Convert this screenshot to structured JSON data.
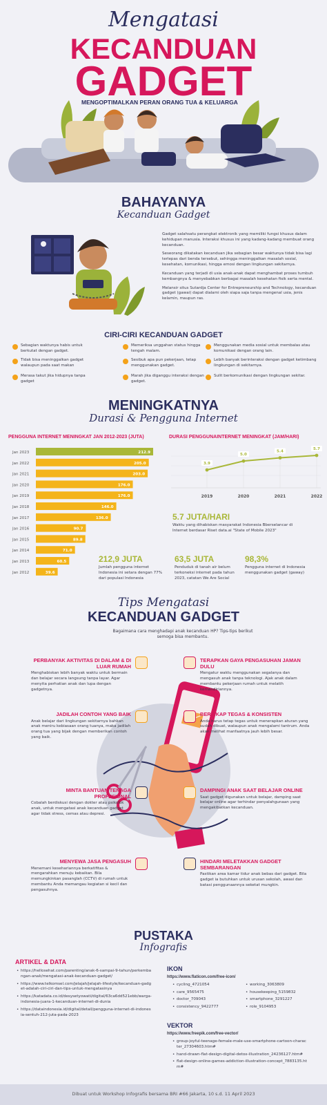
{
  "header": {
    "script_title": "Mengatasi",
    "title_line1": "KECANDUAN",
    "title_line2": "GADGET",
    "subtitle": "MENGOPTIMALKAN PERAN ORANG TUA & KELUARGA"
  },
  "danger": {
    "title": "BAHAYANYA",
    "subtitle": "Kecanduan Gadget",
    "paragraphs": [
      "Gadget salahsatu perangkat elektronik yang memiliki fungsi khusus dalam kehidupan manusia. Interaksi khusus ini yang kadang-kadang membuat orang kecanduan.",
      "Seseorang dikatakan kecanduan jika sebagian besar waktunya tidak bisa lagi terlepas dari benda tersebut, sehingga meninggalkan masalah sosial, kesehatan, komunikasi, hingga emosi dengan lingkungan sekitarnya.",
      "Kecanduan yang terjadi di usia anak-anak dapat menghambat proses tumbuh kembangnya & menyebabkan berbagai masalah kesehatan fisik serta mental.",
      "Melansir situs Sutardja Center for Entrepreneurship and Technology, kecanduan gadget (gawai) dapat dialami oleh siapa saja tanpa mengenal usia, jenis kelamin, maupun ras."
    ]
  },
  "signs": {
    "title": "CIRI-CIRI KECANDUAN GADGET",
    "items": [
      "Sebagian waktunya habis untuk berkutat dengan gadget.",
      "Tidak bisa meninggalkan gadget walaupun pada saat makan",
      "Merasa takut jika hidupnya tanpa gadget",
      "Memeriksa unggahan status hingga tengah malam.",
      "Sesibuk apa pun pekerjaan, tetap menggunakan gadget.",
      "Marah jika diganggu interaksi dengan gadget.",
      "Menggunakan media sosial untuk membalas atau komunikasi dengan orang lain.",
      "Lebih banyak berinteraksi dengan gadget ketimbang lingkungan di sekitarnya.",
      "Sulit berkomunikasi dengan lingkungan sekitar."
    ]
  },
  "growth": {
    "title": "MENINGKATNYA",
    "subtitle": "Durasi & Pengguna Internet"
  },
  "chart_data": [
    {
      "type": "bar",
      "orientation": "horizontal",
      "title": "PENGGUNA INTERNET MENINGKAT  JAN 2012-2023 (JUTA)",
      "categories": [
        "Jan 2023",
        "Jan 2022",
        "Jan 2021",
        "Jan 2020",
        "Jan 2019",
        "Jan 2018",
        "Jan 2017",
        "Jan 2016",
        "Jan 2015",
        "Jan 2014",
        "Jan 2013",
        "Jan 2012"
      ],
      "values": [
        212.9,
        205.0,
        203.0,
        176.0,
        176.0,
        146.0,
        136.0,
        90.7,
        89.8,
        71.0,
        60.5,
        39.6
      ],
      "value_labels": [
        "212.9",
        "205.0",
        "203.0",
        "176.0",
        "176.0",
        "146.0",
        "136.0",
        "90.7",
        "89.8",
        "71.0",
        "60.5",
        "39.6"
      ],
      "colors": [
        "#a9b738",
        "#f4b41a",
        "#f4b41a",
        "#f4b41a",
        "#f4b41a",
        "#f4b41a",
        "#f4b41a",
        "#f4b41a",
        "#f4b41a",
        "#f4b41a",
        "#f4b41a",
        "#f4b41a"
      ]
    },
    {
      "type": "line",
      "title": "DURASI PENGGUNAINTERNET MENINGKAT (JAM/HARI)",
      "categories": [
        "2019",
        "2020",
        "2021",
        "2022"
      ],
      "values": [
        3.9,
        5.0,
        5.4,
        5.7
      ],
      "value_labels": [
        "3.9",
        "5.0",
        "5.4",
        "5.7"
      ],
      "color": "#a9b738"
    }
  ],
  "stats": {
    "highlight": {
      "value": "5.7 JUTA/HARI",
      "text": "Waktu yang dihabiskan masyarakat Indonesia Bberselancar di Internet berdasar Riset data.ai \"State of Mobile 2023\""
    },
    "items": [
      {
        "value": "212,9 JUTA",
        "text": "Jumlah pengguna internet Indonesia ini setara dengan 77% dari populasi Indonesia"
      },
      {
        "value": "63,5 JUTA",
        "text": "Penduduk di tanah air belum terkoneksi internet pada tahun 2023, catatan We Are Social"
      },
      {
        "value": "98,3%",
        "text": "Pengguna internet di Indonesia menggunakan gadget (gaway)"
      }
    ]
  },
  "tips": {
    "script_title": "Tips Mengatasi",
    "title": "KECANDUAN GADGET",
    "intro": "Bagaimana cara menghadapi anak kecanduan HP? Tips-tips berikut semoga bisa membantu.",
    "items": [
      {
        "title": "PERBANYAK AKTIVITAS DI DALAM & DI LUAR RUMAH",
        "text": "Menghabiskan lebih banyak waktu untuk bermain dan belajar secara langsung tanpa layar. Agar menyita perhatian anak dan lupa dengan gadgetnya."
      },
      {
        "title": "TERAPKAN GAYA PENGASUHAN JAMAN DULU",
        "text": "Mengatur waktu menggunakan segalanya dan mengasuh anak tanpa teknologi. Ajak anak dalam membantu pekerjaan rumah untuk melatih kemandiriannya."
      },
      {
        "title": "JADILAH CONTOH YANG BAIK",
        "text": "Anak belajar dari lingkungan sekitarnya bahkan anak meniru kebiasaan orang tuanya, maka jadilah orang tua yang bijak dengan memberikan contoh yang baik."
      },
      {
        "title": "BERSIKAP TEGAS & KONSISTEN",
        "text": "Anda harus tetap tegas untuk menerapkan aturan yang sudah dibuat, walaupun anak mengalami tantrum. Anda akan melihat manfaatnya jauh lebih besar."
      },
      {
        "title": "MINTA BANTUAN TENAGA PROFESIONAL",
        "text": "Cobalah berdiskusi dengan dokter atau psikolok anak, untuk mengatasi anak kecanduan gadget agar tidak stress, cemas atau depresi."
      },
      {
        "title": "DAMPINGI ANAK SAAT BELAJAR ONLINE",
        "text": "Saat gadget digunakan untuk belajar, damping saat belajar online agar terhindar penyalahgunaan yang mengakibatkan kecanduan."
      },
      {
        "title": "MENYEWA JASA PENGASUH",
        "text": "Menemani kesehariannya berkatifitas & mengarahkan menuju kebaikan. Bila memungkinkan pasanglah (CCTV) di rumah untuk membantu Anda memangau kegiatan si kecil dan pengasuhnya."
      },
      {
        "title": "HINDARI MELETAKKAN GADGET SEMBARANGAN",
        "text": "Pastikan area kamar tidur anak bebas dari gadget. Bila gadget ia butuhkan untuk urusan sekolah, awasi dan batasi penggunaannya seketat mungkin."
      }
    ]
  },
  "references": {
    "title": "PUSTAKA",
    "subtitle": "Infografis",
    "articles": {
      "title": "ARTIKEL & DATA",
      "links": [
        "https://hellosehat.com/parenting/anak-6-sampai-9-tahun/perkembangan-anak/mengatasi-anak-kecanduan-gadget/",
        "https://www.telkomsel.com/jelajah/jelajah-lifestyle/kecanduan-gadget-adalah-ciri-ciri-dan-tips-untuk-mengatasinya",
        "https://katadata.co.id/desysetyowati/digital/63ca6dd521ebb/warga-indonesia-juara-1-kecanduan-internet-di-dunia",
        "https://dataindonesia.id/digital/detail/pengguna-internet-di-indonesia-sentuh-212-juta-pada-2023"
      ]
    },
    "icons": {
      "title": "IKON",
      "source": "https://www.flaticon.com/free-icon/",
      "items": [
        "cycling_4721054",
        "working_3063809",
        "care_9565475",
        "housekeeping_5159832",
        "doctor_709043",
        "smartphone_3291227",
        "consistency_9422777",
        "role_9104953"
      ]
    },
    "vectors": {
      "title": "VEKTOR",
      "source": "https://www.freepik.com/free-vector/",
      "items": [
        "group-joyful-teenage-female-male-use-smartphone-cartoon-character_27304603.htm#",
        "hand-drawn-flat-design-digital-detox-illustration_24236127.htm#",
        "flat-design-online-games-addiction-illustration-concept_7883135.htm#"
      ]
    }
  },
  "footer": "Dibuat untuk Workshop Infografis bersama BRI #66 Jakarta, 10 s.d. 11 April 2023"
}
